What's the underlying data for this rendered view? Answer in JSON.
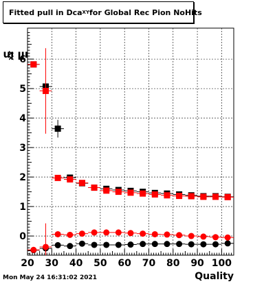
{
  "title": {
    "prefix": "Fitted pull in Dca",
    "subscript": "XY",
    "suffix": " for Global Rec Pion NoHits"
  },
  "ylabel": {
    "text": "pull in Dca",
    "subscript": "XY"
  },
  "xlabel": "Quality",
  "timestamp": "Mon May 24 16:31:02 2021",
  "colors": {
    "series_a": "#000000",
    "series_b": "#ff0000",
    "grid": "#000000"
  },
  "chart_data": {
    "type": "scatter",
    "xlim": [
      20,
      105
    ],
    "ylim": [
      -0.65,
      7.05
    ],
    "xticks": [
      20,
      30,
      40,
      50,
      60,
      70,
      80,
      90,
      100
    ],
    "yticks": [
      0,
      1,
      2,
      3,
      4,
      5,
      6
    ],
    "grid": true,
    "series": [
      {
        "marker": "square",
        "color": "#000000",
        "x": [
          22.5,
          27.5,
          32.5,
          37.5,
          42.5,
          47.5,
          52.5,
          57.5,
          62.5,
          67.5,
          72.5,
          77.5,
          82.5,
          87.5,
          92.5,
          97.5,
          102.5
        ],
        "y": [
          5.82,
          5.07,
          3.64,
          1.98,
          1.79,
          1.64,
          1.6,
          1.56,
          1.53,
          1.5,
          1.46,
          1.44,
          1.41,
          1.38,
          1.35,
          1.35,
          1.33
        ],
        "yerr": [
          0.05,
          0.05,
          0.3,
          0.05,
          0.04,
          0.03,
          0.03,
          0.03,
          0.03,
          0.02,
          0.02,
          0.02,
          0.02,
          0.02,
          0.02,
          0.02,
          0.02
        ]
      },
      {
        "marker": "square",
        "color": "#ff0000",
        "x": [
          22.5,
          27.5,
          32.5,
          37.5,
          42.5,
          47.5,
          52.5,
          57.5,
          62.5,
          67.5,
          72.5,
          77.5,
          82.5,
          87.5,
          92.5,
          97.5,
          102.5
        ],
        "y": [
          5.82,
          4.92,
          1.97,
          1.92,
          1.8,
          1.64,
          1.54,
          1.5,
          1.47,
          1.44,
          1.41,
          1.38,
          1.36,
          1.35,
          1.33,
          1.33,
          1.32
        ],
        "yerr": [
          0.0,
          1.45,
          0.06,
          0.05,
          0.04,
          0.03,
          0.03,
          0.03,
          0.03,
          0.02,
          0.02,
          0.02,
          0.02,
          0.02,
          0.02,
          0.02,
          0.02
        ]
      },
      {
        "marker": "circle",
        "color": "#000000",
        "x": [
          22.5,
          27.5,
          32.5,
          37.5,
          42.5,
          47.5,
          52.5,
          57.5,
          62.5,
          67.5,
          72.5,
          77.5,
          82.5,
          87.5,
          92.5,
          97.5,
          102.5
        ],
        "y": [
          -0.48,
          -0.42,
          -0.31,
          -0.34,
          -0.26,
          -0.3,
          -0.3,
          -0.3,
          -0.29,
          -0.27,
          -0.27,
          -0.27,
          -0.27,
          -0.28,
          -0.28,
          -0.28,
          -0.25
        ],
        "yerr": [
          0.0,
          0.15,
          0.1,
          0.05,
          0.04,
          0.03,
          0.03,
          0.03,
          0.03,
          0.02,
          0.02,
          0.02,
          0.02,
          0.02,
          0.02,
          0.02,
          0.02
        ]
      },
      {
        "marker": "circle",
        "color": "#ff0000",
        "x": [
          22.5,
          27.5,
          32.5,
          37.5,
          42.5,
          47.5,
          52.5,
          57.5,
          62.5,
          67.5,
          72.5,
          77.5,
          82.5,
          87.5,
          92.5,
          97.5,
          102.5
        ],
        "y": [
          -0.47,
          -0.37,
          0.06,
          0.04,
          0.08,
          0.12,
          0.12,
          0.12,
          0.1,
          0.08,
          0.06,
          0.05,
          0.03,
          0.0,
          -0.02,
          -0.04,
          -0.05
        ],
        "yerr": [
          0.0,
          0.8,
          0.06,
          0.05,
          0.04,
          0.03,
          0.03,
          0.03,
          0.03,
          0.02,
          0.02,
          0.02,
          0.02,
          0.02,
          0.02,
          0.02,
          0.02
        ]
      }
    ]
  }
}
